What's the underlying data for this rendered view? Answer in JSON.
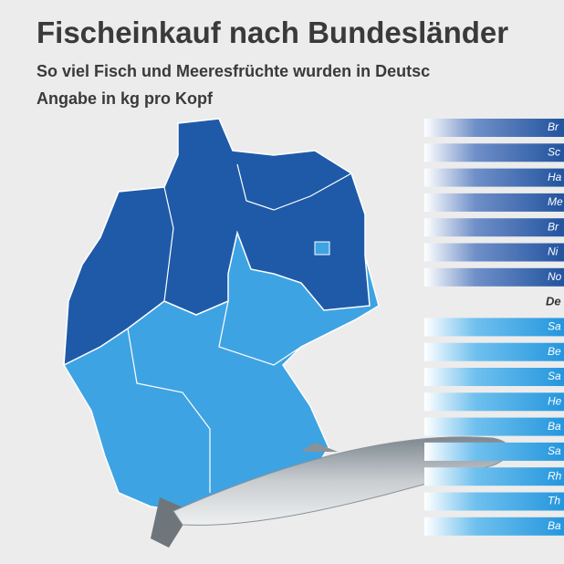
{
  "header": {
    "title": "Fischeinkauf nach Bundesländer",
    "subtitle": "So viel Fisch und Meeresfrüchte wurden in Deutsc",
    "unit": "Angabe in kg pro Kopf"
  },
  "rows": [
    {
      "label": "Br",
      "group": "dark"
    },
    {
      "label": "Sc",
      "group": "dark"
    },
    {
      "label": "Ha",
      "group": "dark"
    },
    {
      "label": "Me",
      "group": "dark"
    },
    {
      "label": "Br",
      "group": "dark"
    },
    {
      "label": "Ni",
      "group": "dark"
    },
    {
      "label": "No",
      "group": "dark"
    },
    {
      "label": "De",
      "group": "total"
    },
    {
      "label": "Sa",
      "group": "light"
    },
    {
      "label": "Be",
      "group": "light"
    },
    {
      "label": "Sa",
      "group": "light"
    },
    {
      "label": "He",
      "group": "light"
    },
    {
      "label": "Ba",
      "group": "light"
    },
    {
      "label": "Sa",
      "group": "light"
    },
    {
      "label": "Rh",
      "group": "light"
    },
    {
      "label": "Th",
      "group": "light"
    },
    {
      "label": "Ba",
      "group": "light"
    }
  ]
}
